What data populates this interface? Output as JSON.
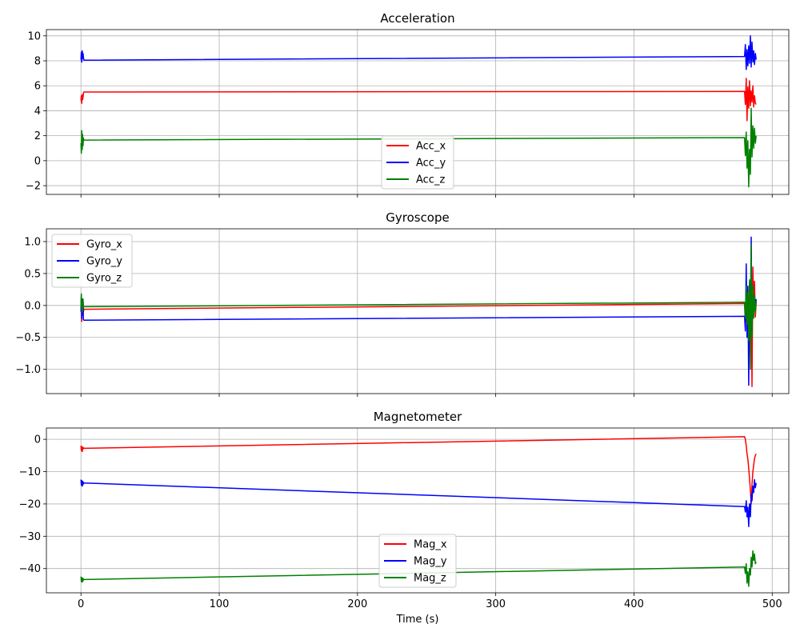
{
  "chart_data": [
    {
      "type": "line",
      "title": "Acceleration",
      "xlabel": "",
      "ylabel": "",
      "xlim": [
        -25,
        512
      ],
      "ylim": [
        -2.7,
        10.5
      ],
      "xticks": [
        0,
        100,
        200,
        300,
        400,
        500
      ],
      "yticks": [
        -2,
        0,
        2,
        4,
        6,
        8,
        10
      ],
      "ytick_labels": [
        "−2",
        "0",
        "2",
        "4",
        "6",
        "8",
        "10"
      ],
      "grid": true,
      "legend_position": "bottom-center",
      "series": [
        {
          "name": "Acc_x",
          "color": "#ff0000",
          "x": [
            0.0,
            0.3,
            0.6,
            0.9,
            1.2,
            1.5,
            1.8,
            2.0,
            480,
            480.6,
            481.2,
            481.8,
            482.4,
            483.0,
            483.6,
            484.2,
            484.8,
            485.4,
            486.0,
            486.6,
            487.2,
            487.8,
            488.4
          ],
          "y": [
            4.8,
            5.2,
            4.6,
            5.3,
            4.9,
            5.1,
            5.4,
            5.5,
            5.55,
            4.5,
            6.6,
            3.2,
            5.9,
            4.2,
            6.4,
            4.4,
            5.6,
            4.7,
            6.0,
            4.3,
            5.2,
            4.6,
            4.5
          ]
        },
        {
          "name": "Acc_y",
          "color": "#0000ff",
          "x": [
            0.0,
            0.3,
            0.6,
            0.9,
            1.2,
            1.5,
            1.8,
            2.0,
            480,
            480.6,
            481.2,
            481.8,
            482.4,
            483.0,
            483.6,
            484.2,
            484.8,
            485.4,
            486.0,
            486.6,
            487.2,
            487.8,
            488.4
          ],
          "y": [
            8.1,
            8.7,
            7.9,
            8.8,
            8.2,
            8.6,
            8.3,
            8.05,
            8.35,
            9.3,
            7.3,
            8.9,
            7.6,
            9.2,
            7.8,
            10.0,
            7.5,
            9.5,
            7.9,
            8.8,
            7.7,
            8.6,
            8.1
          ]
        },
        {
          "name": "Acc_z",
          "color": "#008000",
          "x": [
            0.0,
            0.3,
            0.6,
            0.9,
            1.2,
            1.5,
            1.8,
            2.0,
            480,
            480.6,
            481.2,
            481.8,
            482.4,
            483.0,
            483.6,
            484.2,
            484.8,
            485.4,
            486.0,
            486.6,
            487.2,
            487.8,
            488.4
          ],
          "y": [
            1.4,
            0.6,
            2.4,
            0.9,
            2.1,
            1.2,
            1.8,
            1.65,
            1.85,
            0.4,
            2.3,
            -0.6,
            1.6,
            -2.1,
            0.9,
            -1.1,
            4.2,
            0.3,
            2.8,
            1.0,
            2.6,
            1.4,
            2.0
          ]
        }
      ]
    },
    {
      "type": "line",
      "title": "Gyroscope",
      "xlabel": "",
      "ylabel": "",
      "xlim": [
        -25,
        512
      ],
      "ylim": [
        -1.38,
        1.2
      ],
      "xticks": [
        0,
        100,
        200,
        300,
        400,
        500
      ],
      "yticks": [
        -1.0,
        -0.5,
        0.0,
        0.5,
        1.0
      ],
      "ytick_labels": [
        "−1.0",
        "−0.5",
        "0.0",
        "0.5",
        "1.0"
      ],
      "grid": true,
      "legend_position": "top-left",
      "series": [
        {
          "name": "Gyro_x",
          "color": "#ff0000",
          "x": [
            0.0,
            0.3,
            0.6,
            0.9,
            1.2,
            1.5,
            1.8,
            2.0,
            480,
            480.6,
            481.2,
            481.8,
            482.4,
            483.0,
            483.6,
            484.2,
            484.8,
            485.4,
            486.0,
            486.6,
            487.2,
            487.8,
            488.4
          ],
          "y": [
            -0.05,
            0.12,
            -0.25,
            0.08,
            -0.15,
            0.05,
            -0.1,
            -0.06,
            0.03,
            -0.3,
            0.25,
            -0.45,
            0.3,
            -0.2,
            0.15,
            -0.6,
            0.2,
            -1.27,
            0.6,
            -0.1,
            0.38,
            -0.18,
            0.05
          ]
        },
        {
          "name": "Gyro_y",
          "color": "#0000ff",
          "x": [
            0.0,
            0.3,
            0.6,
            0.9,
            1.2,
            1.5,
            1.8,
            2.0,
            480,
            480.6,
            481.2,
            481.8,
            482.4,
            483.0,
            483.6,
            484.2,
            484.8,
            485.4,
            486.0,
            486.6,
            487.2,
            487.8,
            488.4
          ],
          "y": [
            -0.1,
            0.15,
            -0.2,
            0.1,
            -0.05,
            0.05,
            -0.22,
            -0.23,
            -0.17,
            -0.4,
            0.65,
            -0.5,
            0.3,
            -1.25,
            0.35,
            -0.3,
            1.07,
            -0.4,
            0.2,
            -0.1,
            0.15,
            -0.05,
            0.1
          ]
        },
        {
          "name": "Gyro_z",
          "color": "#008000",
          "x": [
            0.0,
            0.3,
            0.6,
            0.9,
            1.2,
            1.5,
            1.8,
            2.0,
            480,
            480.6,
            481.2,
            481.8,
            482.4,
            483.0,
            483.6,
            484.2,
            484.8,
            485.4,
            486.0,
            486.6,
            487.2,
            487.8,
            488.4
          ],
          "y": [
            -0.02,
            0.18,
            -0.1,
            0.05,
            -0.08,
            0.1,
            -0.02,
            -0.02,
            0.05,
            -0.2,
            0.3,
            -0.3,
            0.2,
            -0.55,
            0.4,
            -1.0,
            0.95,
            -0.5,
            0.3,
            -0.2,
            0.15,
            -0.1,
            0.05
          ]
        }
      ]
    },
    {
      "type": "line",
      "title": "Magnetometer",
      "xlabel": "Time (s)",
      "ylabel": "",
      "xlim": [
        -25,
        512
      ],
      "ylim": [
        -47.5,
        3.5
      ],
      "xticks": [
        0,
        100,
        200,
        300,
        400,
        500
      ],
      "yticks": [
        -40,
        -30,
        -20,
        -10,
        0
      ],
      "ytick_labels": [
        "−40",
        "−30",
        "−20",
        "−10",
        "0"
      ],
      "grid": true,
      "legend_position": "bottom-center",
      "series": [
        {
          "name": "Mag_x",
          "color": "#ff0000",
          "x": [
            0.0,
            0.3,
            0.6,
            0.9,
            1.2,
            1.5,
            1.8,
            2.0,
            480,
            480.6,
            481.2,
            481.8,
            482.4,
            483.0,
            483.6,
            484.2,
            484.8,
            485.4,
            486.0,
            486.6,
            487.2,
            487.8,
            488.4
          ],
          "y": [
            -2.0,
            -3.5,
            -2.2,
            -3.8,
            -2.5,
            -3.0,
            -2.6,
            -2.8,
            0.8,
            0.0,
            -2.0,
            -4.5,
            -6.0,
            -9.0,
            -12.0,
            -16.0,
            -20.0,
            -14.0,
            -10.0,
            -8.0,
            -6.0,
            -5.0,
            -4.5
          ]
        },
        {
          "name": "Mag_y",
          "color": "#0000ff",
          "x": [
            0.0,
            0.3,
            0.6,
            0.9,
            1.2,
            1.5,
            1.8,
            2.0,
            480,
            480.6,
            481.2,
            481.8,
            482.4,
            483.0,
            483.6,
            484.2,
            484.8,
            485.4,
            486.0,
            486.6,
            487.2,
            487.8,
            488.4
          ],
          "y": [
            -12.5,
            -14.2,
            -12.8,
            -14.5,
            -13.0,
            -14.0,
            -13.3,
            -13.5,
            -20.8,
            -22.5,
            -19.0,
            -24.0,
            -21.0,
            -27.0,
            -20.0,
            -24.0,
            -17.0,
            -19.0,
            -14.5,
            -16.5,
            -12.5,
            -15.0,
            -13.5
          ]
        },
        {
          "name": "Mag_z",
          "color": "#008000",
          "x": [
            0.0,
            0.3,
            0.6,
            0.9,
            1.2,
            1.5,
            1.8,
            2.0,
            480,
            480.6,
            481.2,
            481.8,
            482.4,
            483.0,
            483.6,
            484.2,
            484.8,
            485.4,
            486.0,
            486.6,
            487.2,
            487.8,
            488.4
          ],
          "y": [
            -42.5,
            -44.0,
            -42.8,
            -44.2,
            -43.0,
            -43.8,
            -43.2,
            -43.4,
            -39.5,
            -41.5,
            -38.5,
            -44.5,
            -41.0,
            -45.5,
            -40.0,
            -42.0,
            -36.5,
            -39.5,
            -34.5,
            -37.5,
            -35.5,
            -38.5,
            -38.0
          ]
        }
      ]
    }
  ]
}
